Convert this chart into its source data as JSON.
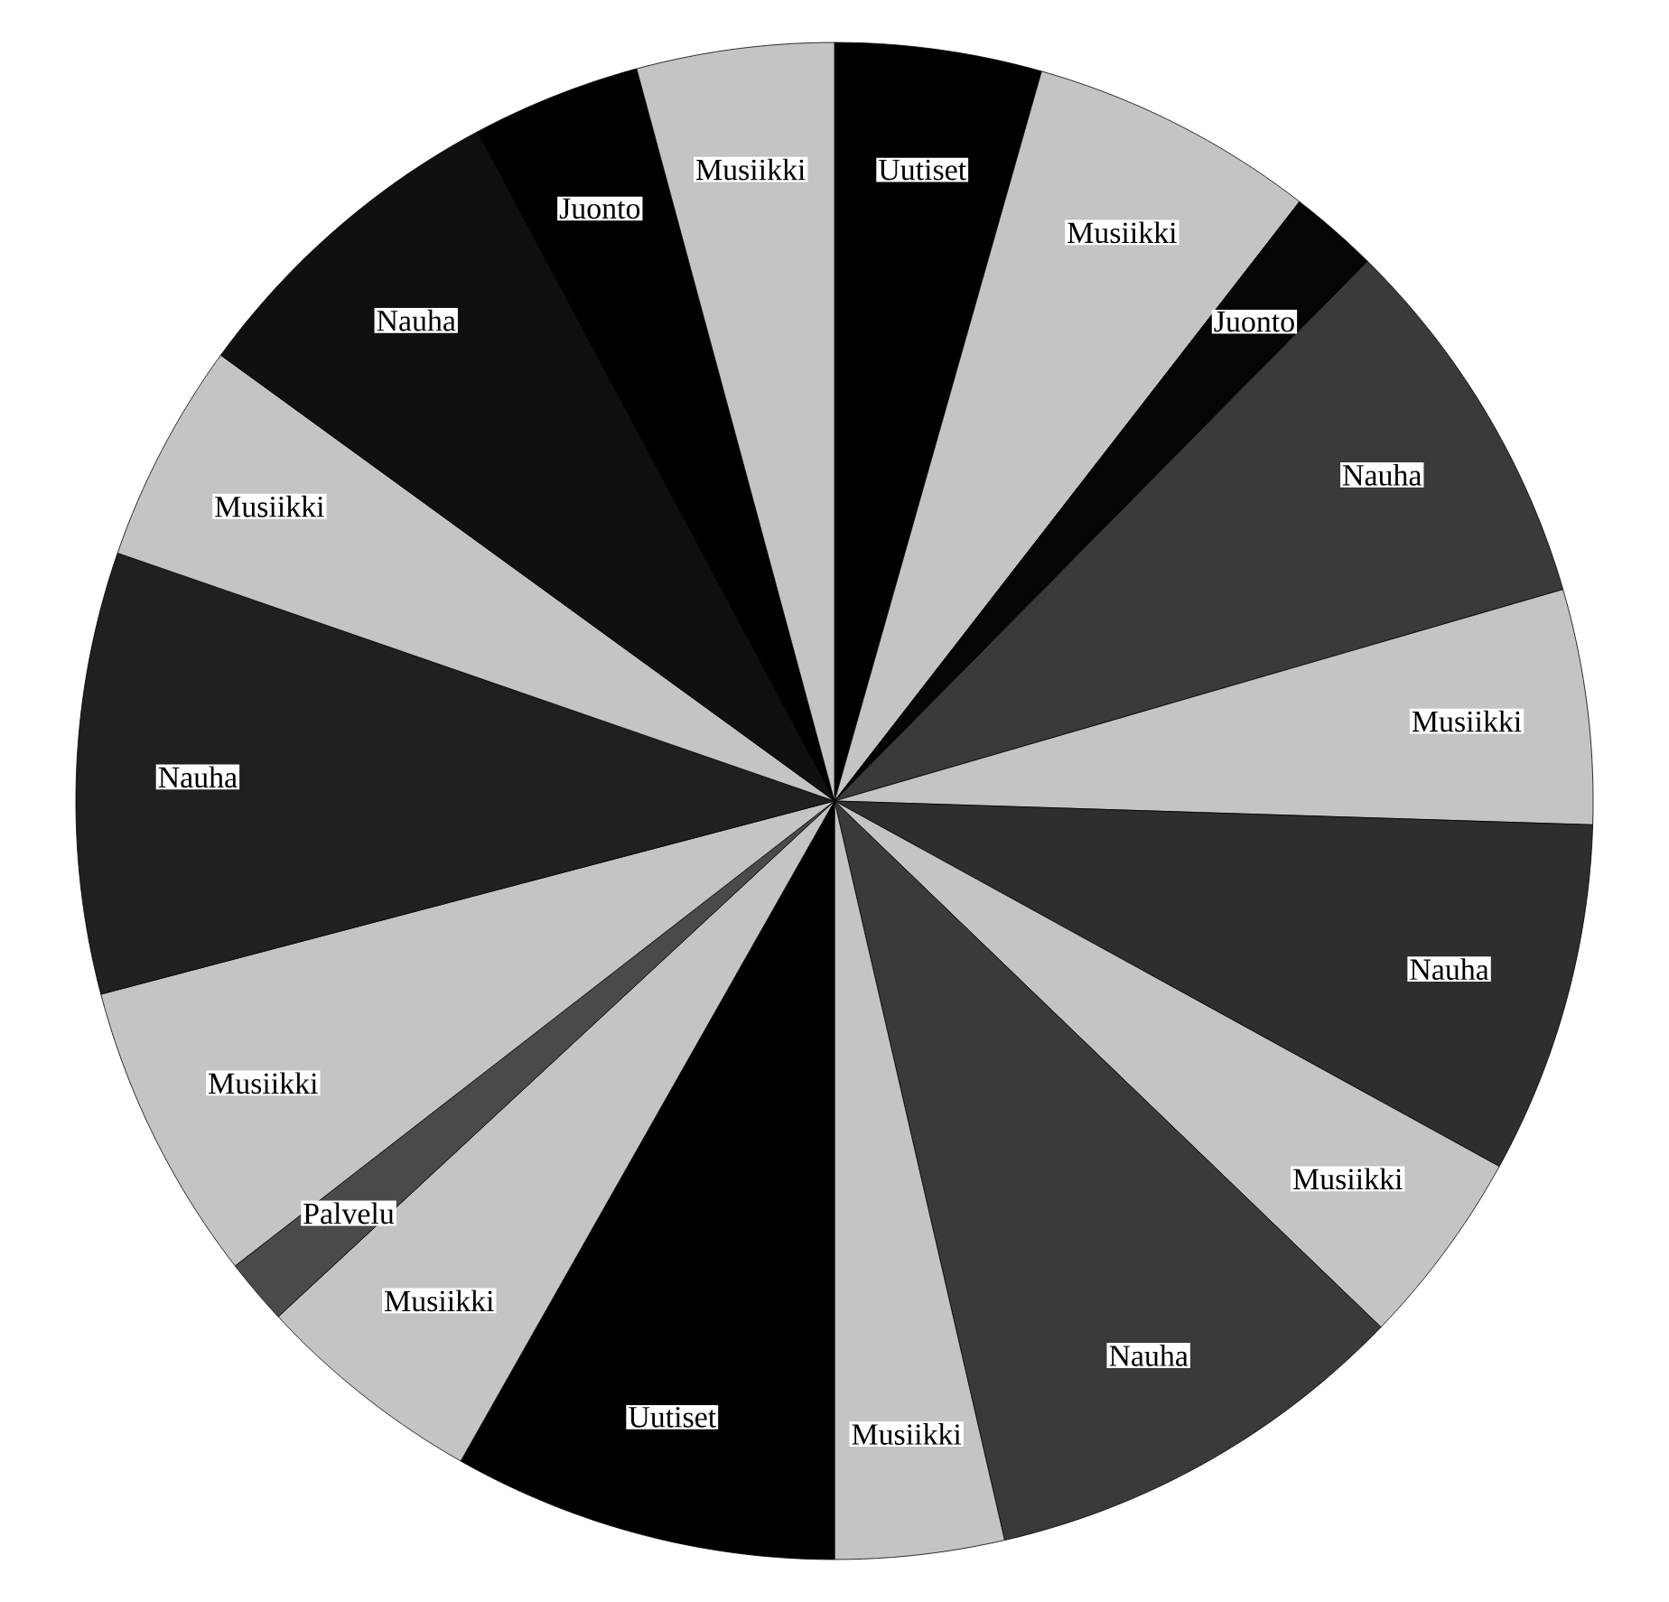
{
  "chart_data": {
    "type": "pie",
    "categories": [
      "Uutiset",
      "Musiikki",
      "Juonto",
      "Nauha",
      "Musiikki",
      "Nauha",
      "Musiikki",
      "Nauha",
      "Musiikki",
      "Uutiset",
      "Musiikki",
      "Palvelu",
      "Musiikki",
      "Nauha",
      "Musiikki",
      "Nauha",
      "Juonto",
      "Musiikki"
    ],
    "values": [
      4.4,
      6.1,
      1.9,
      8.1,
      5.0,
      7.5,
      4.2,
      9.2,
      3.6,
      8.2,
      4.9,
      1.4,
      6.4,
      9.4,
      4.7,
      7.2,
      3.6,
      4.2
    ],
    "colors": [
      "#000000",
      "#c4c4c4",
      "#050505",
      "#3a3a3a",
      "#c4c4c4",
      "#2e2e2e",
      "#c4c4c4",
      "#3a3a3a",
      "#c4c4c4",
      "#000000",
      "#c4c4c4",
      "#4a4a4a",
      "#c4c4c4",
      "#202020",
      "#c4c4c4",
      "#101010",
      "#000000",
      "#c4c4c4"
    ]
  }
}
